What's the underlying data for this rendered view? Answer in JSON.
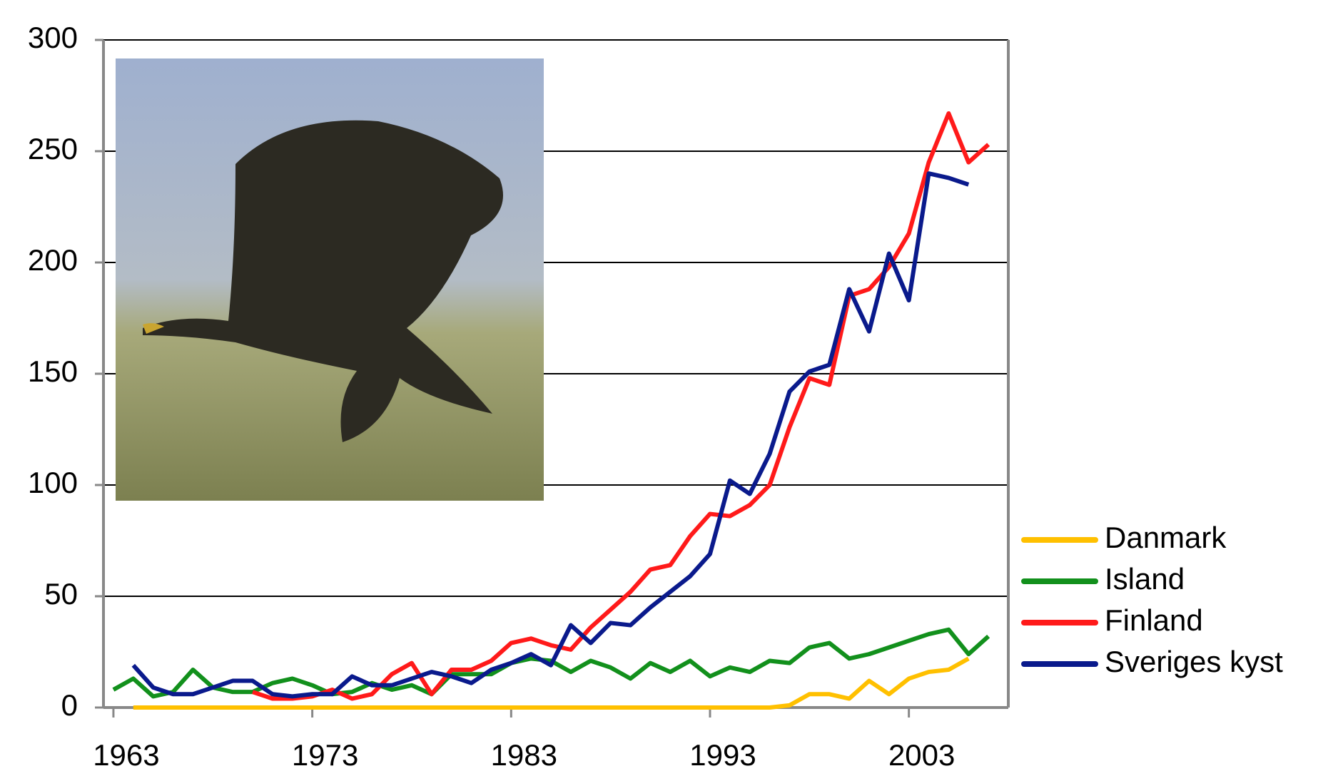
{
  "chart_data": {
    "type": "line",
    "x": [
      1963,
      1964,
      1965,
      1966,
      1967,
      1968,
      1969,
      1970,
      1971,
      1972,
      1973,
      1974,
      1975,
      1976,
      1977,
      1978,
      1979,
      1980,
      1981,
      1982,
      1983,
      1984,
      1985,
      1986,
      1987,
      1988,
      1989,
      1990,
      1991,
      1992,
      1993,
      1994,
      1995,
      1996,
      1997,
      1998,
      1999,
      2000,
      2001,
      2002,
      2003,
      2004,
      2005,
      2006,
      2007
    ],
    "xlim": [
      1962.5,
      2008
    ],
    "xticks": [
      1963,
      1973,
      1983,
      1993,
      2003
    ],
    "ylim": [
      0,
      300
    ],
    "yticks": [
      0,
      50,
      100,
      150,
      200,
      250,
      300
    ],
    "grid": true,
    "legend": "right",
    "series": [
      {
        "name": "Danmark",
        "color": "#ffc000",
        "values": [
          null,
          0,
          0,
          0,
          0,
          0,
          0,
          0,
          0,
          0,
          0,
          0,
          0,
          0,
          0,
          0,
          0,
          0,
          0,
          0,
          0,
          0,
          0,
          0,
          0,
          0,
          0,
          0,
          0,
          0,
          0,
          0,
          0,
          0,
          1,
          6,
          6,
          4,
          12,
          6,
          13,
          16,
          17,
          22,
          null
        ]
      },
      {
        "name": "Island",
        "color": "#12901c",
        "values": [
          8,
          13,
          5,
          7,
          17,
          9,
          7,
          7,
          11,
          13,
          10,
          6,
          7,
          11,
          8,
          10,
          6,
          15,
          15,
          15,
          20,
          22,
          21,
          16,
          21,
          18,
          13,
          20,
          16,
          21,
          14,
          18,
          16,
          21,
          20,
          27,
          29,
          22,
          24,
          27,
          30,
          33,
          35,
          24,
          32
        ]
      },
      {
        "name": "Finland",
        "color": "#ff1a1a",
        "values": [
          null,
          null,
          null,
          null,
          null,
          null,
          null,
          7,
          4,
          4,
          5,
          8,
          4,
          6,
          15,
          20,
          6,
          17,
          17,
          21,
          29,
          31,
          28,
          26,
          36,
          44,
          52,
          62,
          64,
          77,
          87,
          86,
          91,
          100,
          126,
          148,
          145,
          185,
          188,
          198,
          213,
          245,
          267,
          245,
          253
        ]
      },
      {
        "name": "Sveriges kyst",
        "color": "#0a1a8c",
        "values": [
          null,
          19,
          9,
          6,
          6,
          9,
          12,
          12,
          6,
          5,
          6,
          6,
          14,
          10,
          10,
          13,
          16,
          14,
          11,
          17,
          20,
          24,
          19,
          37,
          29,
          38,
          37,
          45,
          52,
          59,
          69,
          102,
          96,
          114,
          142,
          151,
          154,
          188,
          169,
          204,
          183,
          240,
          238,
          235,
          null
        ]
      }
    ]
  }
}
